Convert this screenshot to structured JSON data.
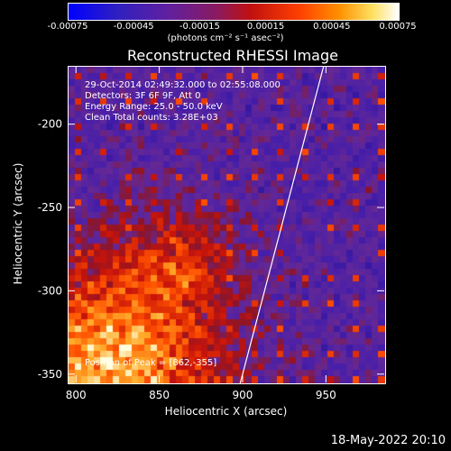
{
  "colorbar": {
    "tick_labels": [
      "-0.00075",
      "-0.00045",
      "-0.00015",
      "0.00015",
      "0.00045",
      "0.00075"
    ],
    "unit_label": "(photons cm⁻² s⁻¹ asec⁻²)",
    "range": [
      -0.00075,
      0.00075
    ]
  },
  "image_info": {
    "time": "29-Oct-2014 02:49:32.000 to 02:55:08.000",
    "detectors": "Detectors: 3F 6F 9F, Att 0",
    "energy": "Energy Range: 25.0 - 50.0 keV",
    "clean": "Clean    Total counts: 3.28E+03",
    "peak": "Position of Peak = [862,-355]"
  },
  "footer": {
    "timestamp": "18-May-2022 20:10"
  },
  "chart_data": {
    "type": "heatmap",
    "title": "Reconstructed RHESSI Image",
    "xlabel": "Heliocentric X (arcsec)",
    "ylabel": "Heliocentric Y (arcsec)",
    "xlim": [
      795,
      985
    ],
    "ylim": [
      -355,
      -165
    ],
    "x_ticks": [
      "800",
      "850",
      "900",
      "950"
    ],
    "y_ticks": [
      "-200",
      "-250",
      "-300",
      "-350"
    ],
    "x_tick_values": [
      800,
      850,
      900,
      950
    ],
    "y_tick_values": [
      -200,
      -250,
      -300,
      -350
    ],
    "limb_line": [
      [
        898,
        -355
      ],
      [
        948,
        -165
      ]
    ],
    "peak_position": [
      862,
      -355
    ],
    "colormap": "RHESSI (blue-purple-red-yellow-white)"
  }
}
